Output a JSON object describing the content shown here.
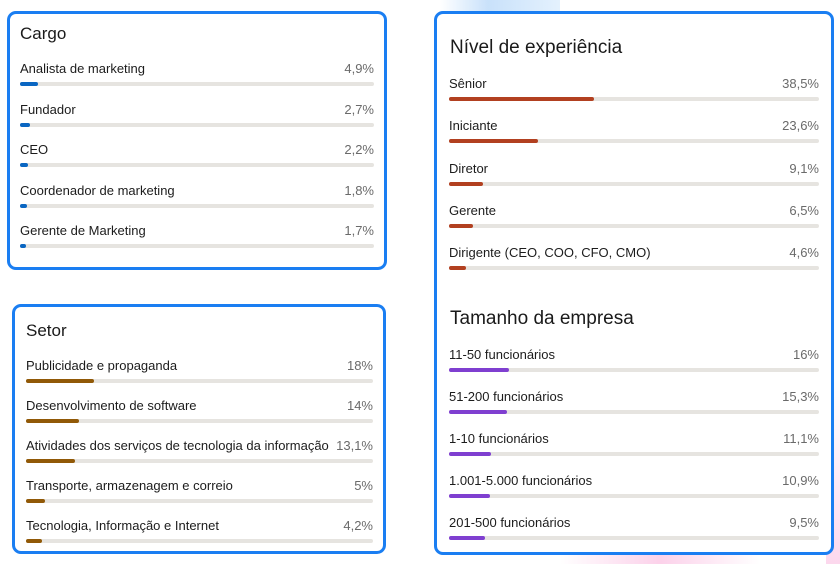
{
  "chart_data": [
    {
      "type": "bar",
      "title": "Cargo",
      "accent": "#0a66c2",
      "scale_max": 38.5,
      "unit_decimal": ",",
      "categories": [
        "Analista de marketing",
        "Fundador",
        "CEO",
        "Coordenador de marketing",
        "Gerente de Marketing"
      ],
      "values": [
        4.9,
        2.7,
        2.2,
        1.8,
        1.7
      ],
      "labels": [
        "4,9%",
        "2,7%",
        "2,2%",
        "1,8%",
        "1,7%"
      ]
    },
    {
      "type": "bar",
      "title": "Setor",
      "accent": "#915907",
      "scale_max": 38.5,
      "categories": [
        "Publicidade e propaganda",
        "Desenvolvimento de software",
        "Atividades dos serviços de tecnologia da informação",
        "Transporte, armazenagem e correio",
        "Tecnologia, Informação e Internet"
      ],
      "values": [
        18,
        14,
        13.1,
        5,
        4.2
      ],
      "labels": [
        "18%",
        "14%",
        "13,1%",
        "5%",
        "4,2%"
      ]
    },
    {
      "type": "bar",
      "title": "Nível de experiência",
      "accent": "#b24020",
      "scale_max": 38.5,
      "categories": [
        "Sênior",
        "Iniciante",
        "Diretor",
        "Gerente",
        "Dirigente (CEO, COO, CFO, CMO)"
      ],
      "values": [
        38.5,
        23.6,
        9.1,
        6.5,
        4.6
      ],
      "labels": [
        "38,5%",
        "23,6%",
        "9,1%",
        "6,5%",
        "4,6%"
      ]
    },
    {
      "type": "bar",
      "title": "Tamanho da empresa",
      "accent": "#7f3fd0",
      "scale_max": 38.5,
      "categories": [
        "11-50 funcionários",
        "51-200 funcionários",
        "1-10 funcionários",
        "1.001-5.000 funcionários",
        "201-500 funcionários"
      ],
      "values": [
        16,
        15.3,
        11.1,
        10.9,
        9.5
      ],
      "labels": [
        "16%",
        "15,3%",
        "11,1%",
        "10,9%",
        "9,5%"
      ]
    }
  ]
}
